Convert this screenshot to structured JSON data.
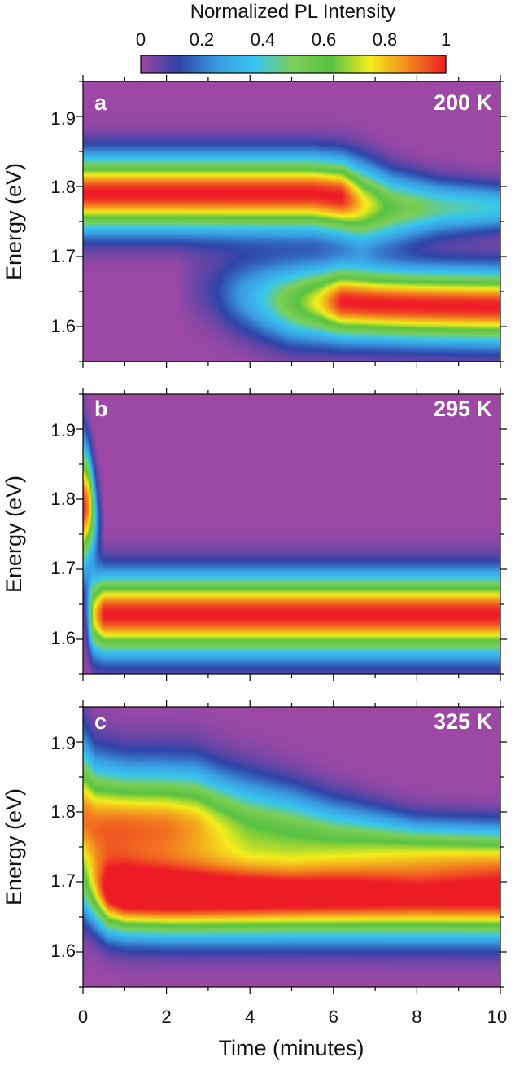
{
  "colorbar": {
    "label": "Normalized PL Intensity",
    "ticks": [
      "0",
      "0.2",
      "0.4",
      "0.6",
      "0.8",
      "1"
    ],
    "stops": [
      "#9e48a6",
      "#2f44a8",
      "#3a9ae0",
      "#39c6ef",
      "#7ccf55",
      "#57c244",
      "#f3ee1c",
      "#f28a1f",
      "#ee1c25"
    ]
  },
  "chart_data": [
    {
      "type": "heatmap",
      "panel": "a",
      "temperature": "200 K",
      "xlabel": "",
      "ylabel": "Energy (eV)",
      "xlim": [
        0,
        10
      ],
      "ylim": [
        1.55,
        1.95
      ],
      "yticks": [
        "1.6",
        "1.7",
        "1.8",
        "1.9"
      ],
      "bands": [
        {
          "t": [
            0,
            2,
            4,
            5.5,
            6.2,
            6.7,
            7.4,
            8.5,
            10
          ],
          "center": [
            1.79,
            1.79,
            1.79,
            1.79,
            1.785,
            1.775,
            1.77,
            1.77,
            1.77
          ],
          "width": [
            0.035,
            0.035,
            0.035,
            0.035,
            0.036,
            0.038,
            0.033,
            0.026,
            0.022
          ],
          "amp": [
            1,
            1,
            1,
            1,
            1,
            0.78,
            0.58,
            0.45,
            0.38
          ]
        },
        {
          "t": [
            0,
            2.2,
            3.2,
            4.3,
            5,
            5.7,
            6.2,
            7,
            8,
            10
          ],
          "center": [
            1.66,
            1.66,
            1.65,
            1.64,
            1.635,
            1.635,
            1.635,
            1.632,
            1.63,
            1.628
          ],
          "width": [
            0.035,
            0.035,
            0.037,
            0.038,
            0.038,
            0.036,
            0.035,
            0.034,
            0.034,
            0.034
          ],
          "amp": [
            0,
            0,
            0.12,
            0.38,
            0.58,
            0.78,
            1,
            1,
            1,
            1
          ]
        }
      ]
    },
    {
      "type": "heatmap",
      "panel": "b",
      "temperature": "295 K",
      "xlabel": "",
      "ylabel": "Energy (eV)",
      "xlim": [
        0,
        10
      ],
      "ylim": [
        1.55,
        1.95
      ],
      "yticks": [
        "1.6",
        "1.7",
        "1.8",
        "1.9"
      ],
      "bands": [
        {
          "t": [
            0,
            0.15,
            0.25,
            0.35,
            0.5,
            10
          ],
          "center": [
            1.79,
            1.79,
            1.78,
            1.77,
            1.76,
            1.76
          ],
          "width": [
            0.06,
            0.05,
            0.045,
            0.04,
            0.04,
            0.04
          ],
          "amp": [
            1,
            0.85,
            0.5,
            0.2,
            0,
            0
          ]
        },
        {
          "t": [
            0,
            0.1,
            0.25,
            0.5,
            1,
            10
          ],
          "center": [
            1.64,
            1.64,
            1.635,
            1.635,
            1.635,
            1.635
          ],
          "width": [
            0.038,
            0.038,
            0.038,
            0.038,
            0.038,
            0.038
          ],
          "amp": [
            0,
            0.2,
            0.75,
            1,
            1,
            1
          ]
        }
      ]
    },
    {
      "type": "heatmap",
      "panel": "c",
      "temperature": "325 K",
      "xlabel": "Time (minutes)",
      "ylabel": "Energy (eV)",
      "xlim": [
        0,
        10
      ],
      "ylim": [
        1.55,
        1.95
      ],
      "yticks": [
        "1.6",
        "1.7",
        "1.8",
        "1.9"
      ],
      "xticks": [
        "0",
        "2",
        "4",
        "6",
        "8",
        "10"
      ],
      "bands": [
        {
          "t": [
            0,
            0.3,
            1,
            2,
            2.7,
            3.3,
            4,
            5,
            6,
            7,
            8,
            10
          ],
          "center": [
            1.79,
            1.78,
            1.78,
            1.78,
            1.78,
            1.775,
            1.77,
            1.765,
            1.755,
            1.75,
            1.745,
            1.74
          ],
          "width": [
            0.07,
            0.06,
            0.055,
            0.055,
            0.055,
            0.052,
            0.05,
            0.045,
            0.04,
            0.035,
            0.03,
            0.03
          ],
          "amp": [
            0.9,
            0.9,
            0.9,
            0.88,
            0.82,
            0.72,
            0.62,
            0.58,
            0.55,
            0.55,
            0.55,
            0.55
          ]
        },
        {
          "t": [
            0,
            0.3,
            0.6,
            1,
            2,
            10
          ],
          "center": [
            1.69,
            1.685,
            1.68,
            1.678,
            1.676,
            1.675
          ],
          "width": [
            0.03,
            0.035,
            0.037,
            0.037,
            0.037,
            0.037
          ],
          "amp": [
            0.15,
            0.5,
            0.85,
            1,
            1,
            1
          ]
        }
      ]
    }
  ]
}
